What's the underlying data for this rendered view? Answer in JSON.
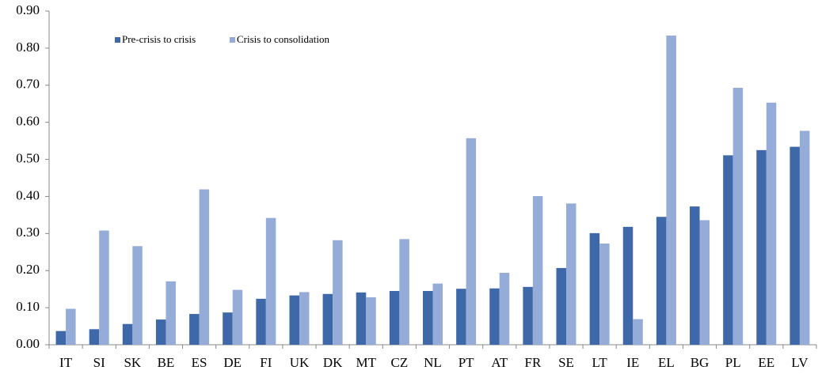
{
  "chart_data": {
    "type": "bar",
    "categories": [
      "IT",
      "SI",
      "SK",
      "BE",
      "ES",
      "DE",
      "FI",
      "UK",
      "DK",
      "MT",
      "CZ",
      "NL",
      "PT",
      "AT",
      "FR",
      "SE",
      "LT",
      "IE",
      "EL",
      "BG",
      "PL",
      "EE",
      "LV"
    ],
    "series": [
      {
        "name": "Pre-crisis to crisis",
        "color": "#3f68a9",
        "values": [
          0.037,
          0.042,
          0.056,
          0.068,
          0.083,
          0.087,
          0.124,
          0.133,
          0.137,
          0.141,
          0.145,
          0.145,
          0.151,
          0.152,
          0.156,
          0.207,
          0.301,
          0.318,
          0.345,
          0.373,
          0.511,
          0.525,
          0.534
        ]
      },
      {
        "name": "Crisis to consolidation",
        "color": "#95acd9",
        "values": [
          0.097,
          0.308,
          0.266,
          0.171,
          0.419,
          0.148,
          0.342,
          0.142,
          0.282,
          0.128,
          0.285,
          0.165,
          0.557,
          0.194,
          0.401,
          0.381,
          0.273,
          0.069,
          0.834,
          0.336,
          0.693,
          0.653,
          0.577
        ]
      }
    ],
    "ylim": [
      0,
      0.9
    ],
    "yticks": [
      {
        "value": 0,
        "label": "0.00"
      },
      {
        "value": 0.1,
        "label": "0.10"
      },
      {
        "value": 0.2,
        "label": "0.20"
      },
      {
        "value": 0.3,
        "label": "0.30"
      },
      {
        "value": 0.4,
        "label": "0.40"
      },
      {
        "value": 0.5,
        "label": "0.50"
      },
      {
        "value": 0.6,
        "label": "0.60"
      },
      {
        "value": 0.7,
        "label": "0.70"
      },
      {
        "value": 0.8,
        "label": "0.80"
      },
      {
        "value": 0.9,
        "label": "0.90"
      }
    ],
    "grid": false
  }
}
